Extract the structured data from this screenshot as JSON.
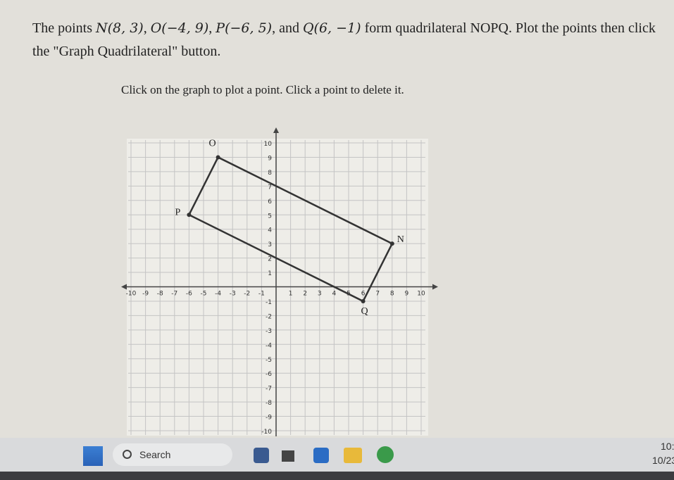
{
  "problem": {
    "segments": [
      "The points ",
      "N(8, 3)",
      ", ",
      "O(−4, 9)",
      ", ",
      "P(−6, 5)",
      ", and ",
      "Q(6, −1)",
      " form quadrilateral NOPQ. Plot the points then click the \"Graph Quadrilateral\" button."
    ]
  },
  "instruction": "Click on the graph to plot a point. Click a point to delete it.",
  "graph": {
    "xlim": [
      -10,
      10
    ],
    "ylim": [
      -10,
      10
    ],
    "xticks": [
      -10,
      -9,
      -8,
      -7,
      -6,
      -5,
      -4,
      -3,
      -2,
      -1,
      1,
      2,
      3,
      4,
      5,
      6,
      7,
      8,
      9,
      10
    ],
    "yticks": [
      -10,
      -9,
      -8,
      -7,
      -6,
      -5,
      -4,
      -3,
      -2,
      -1,
      1,
      2,
      3,
      4,
      5,
      6,
      7,
      8,
      9,
      10
    ],
    "points": [
      {
        "label": "N",
        "x": 8,
        "y": 3
      },
      {
        "label": "O",
        "x": -4,
        "y": 9
      },
      {
        "label": "P",
        "x": -6,
        "y": 5
      },
      {
        "label": "Q",
        "x": 6,
        "y": -1
      }
    ]
  },
  "taskbar": {
    "search": "Search",
    "time": "10:",
    "date": "10/23"
  }
}
